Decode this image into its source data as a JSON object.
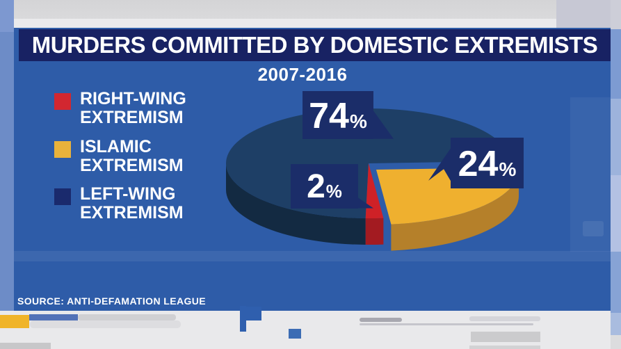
{
  "header": {
    "title": "MURDERS COMMITTED BY DOMESTIC EXTREMISTS",
    "subtitle": "2007-2016"
  },
  "source_line": "SOURCE: ANTI-DEFAMATION LEAGUE",
  "legend": {
    "position": "left",
    "items": [
      {
        "line1": "RIGHT-WING",
        "line2": "EXTREMISM",
        "swatch_color": "#d22730"
      },
      {
        "line1": "ISLAMIC",
        "line2": "EXTREMISM",
        "swatch_color": "#e9b23b"
      },
      {
        "line1": "LEFT-WING",
        "line2": "EXTREMISM",
        "swatch_color": "#1a2a6d"
      }
    ]
  },
  "callouts": [
    {
      "number": "74",
      "unit": "%"
    },
    {
      "number": "24",
      "unit": "%"
    },
    {
      "number": "2",
      "unit": "%"
    }
  ],
  "colors": {
    "panel_blue": "#2e5ca8",
    "title_bar_navy": "#182263",
    "callout_box_navy": "#1b2d69",
    "text_white": "#ffffff",
    "legend_red": "#d22730",
    "legend_yellow": "#e9b23b",
    "legend_navy": "#1a2a6d"
  },
  "chart_data": {
    "type": "pie",
    "style": "3d-exploded-ellipse",
    "title": "MURDERS COMMITTED BY DOMESTIC EXTREMISTS",
    "subtitle": "2007-2016",
    "source": "ANTI-DEFAMATION LEAGUE",
    "legend_position": "left",
    "slices": [
      {
        "legend_label": "LEFT-WING EXTREMISM",
        "percent": 74,
        "callout": "74%",
        "top_color": "#1e3f66",
        "side_color": "#132a42",
        "exploded": false
      },
      {
        "legend_label": "ISLAMIC EXTREMISM",
        "percent": 24,
        "callout": "24%",
        "top_color": "#efb02f",
        "side_color": "#b5802a",
        "exploded": true
      },
      {
        "legend_label": "RIGHT-WING EXTREMISM",
        "percent": 2,
        "callout": "2%",
        "top_color": "#cf2127",
        "side_color": "#a31b21",
        "exploded": false
      }
    ]
  }
}
